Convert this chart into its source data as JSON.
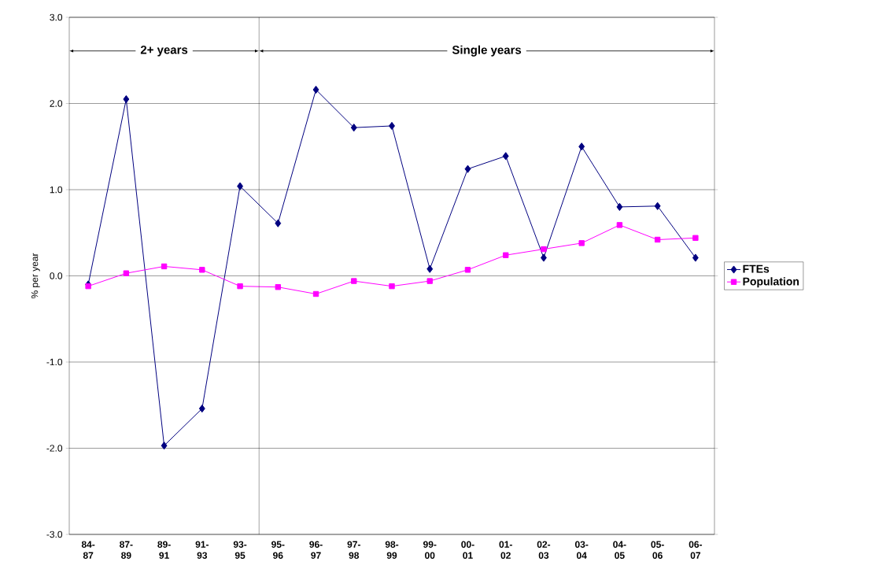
{
  "chart_data": {
    "type": "line",
    "ylabel": "% per year",
    "categories": [
      "84-87",
      "87-89",
      "89-91",
      "91-93",
      "93-95",
      "95-96",
      "96-97",
      "97-98",
      "98-99",
      "99-00",
      "00-01",
      "01-02",
      "02-03",
      "03-04",
      "04-05",
      "05-06",
      "06-07"
    ],
    "series": [
      {
        "name": "FTEs",
        "color": "#000080",
        "marker": "diamond",
        "values": [
          -0.1,
          2.05,
          -1.97,
          -1.54,
          1.04,
          0.61,
          2.16,
          1.72,
          1.74,
          0.08,
          1.24,
          1.39,
          0.21,
          1.5,
          0.8,
          0.81,
          0.21
        ]
      },
      {
        "name": "Population",
        "color": "#ff00ff",
        "marker": "square",
        "values": [
          -0.12,
          0.03,
          0.11,
          0.07,
          -0.12,
          -0.13,
          -0.21,
          -0.06,
          -0.12,
          -0.06,
          0.07,
          0.24,
          0.31,
          0.38,
          0.59,
          0.42,
          0.44
        ]
      }
    ],
    "ylim": [
      -3,
      3
    ],
    "yticks": [
      {
        "value": -3,
        "label": "-3.0"
      },
      {
        "value": -2,
        "label": "-2.0"
      },
      {
        "value": -1,
        "label": "-1.0"
      },
      {
        "value": 0,
        "label": "0.0"
      },
      {
        "value": 1,
        "label": "1.0"
      },
      {
        "value": 2,
        "label": "2.0"
      },
      {
        "value": 3,
        "label": "3.0"
      }
    ],
    "grid": "y",
    "legend": "right",
    "annotations": [
      "2+ years",
      "Single years"
    ]
  }
}
